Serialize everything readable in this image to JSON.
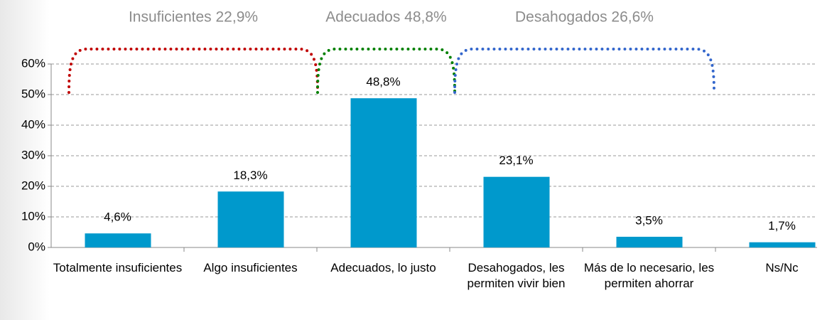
{
  "chart_data": {
    "type": "bar",
    "categories": [
      "Totalmente insuficientes",
      "Algo insuficientes",
      "Adecuados, lo justo",
      "Desahogados, les permiten vivir bien",
      "Más de lo necesario, les permiten ahorrar",
      "Ns/Nc"
    ],
    "values": [
      4.6,
      18.3,
      48.8,
      23.1,
      3.5,
      1.7
    ],
    "value_labels": [
      "4,6%",
      "18,3%",
      "48,8%",
      "23,1%",
      "3,5%",
      "1,7%"
    ],
    "color": "#0099cc",
    "ylim": [
      0,
      60
    ],
    "yticks": [
      {
        "value": 0,
        "label": "0%"
      },
      {
        "value": 10,
        "label": "10%"
      },
      {
        "value": 20,
        "label": "20%"
      },
      {
        "value": 30,
        "label": "30%"
      },
      {
        "value": 40,
        "label": "40%"
      },
      {
        "value": 50,
        "label": "50%"
      },
      {
        "value": 60,
        "label": "60%"
      }
    ],
    "grid": true,
    "annotations": [
      {
        "text": "Insuficientes 22,9%",
        "color": "#c00000"
      },
      {
        "text": "Adecuados 48,8%",
        "color": "#008000"
      },
      {
        "text": "Desahogados 26,6%",
        "color": "#3366cc"
      }
    ]
  }
}
